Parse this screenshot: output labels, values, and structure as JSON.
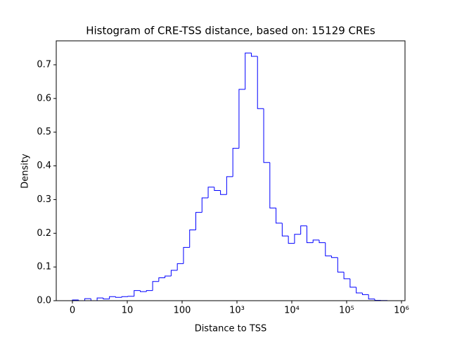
{
  "chart_data": {
    "type": "histogram",
    "title": "Histogram of CRE-TSS distance, based on: 15129 CREs",
    "x_label": "Distance to TSS",
    "y_label": "Density",
    "xscale": "symlog",
    "linthresh": 10,
    "color": "#0000ff",
    "bins": [
      0,
      1.125,
      2.25,
      3.375,
      4.5,
      5.625,
      6.75,
      7.875,
      9,
      10.29,
      13.34,
      17.28,
      22.39,
      29.01,
      37.58,
      48.7,
      63.1,
      81.75,
      105.9,
      137.2,
      177.8,
      230.4,
      298.5,
      386.7,
      501.2,
      649.3,
      841.4,
      1090,
      1413,
      1830,
      2371,
      3073,
      3981,
      5158,
      6683,
      8660,
      11220,
      14540,
      18840,
      24400,
      31620,
      40970,
      53090,
      68770,
      89130,
      115500,
      149600,
      193800,
      251200,
      325500,
      421700,
      546400
    ],
    "values": [
      0.002,
      0,
      0.006,
      0,
      0.008,
      0.005,
      0.012,
      0.01,
      0.012,
      0.013,
      0.03,
      0.027,
      0.03,
      0.057,
      0.068,
      0.073,
      0.09,
      0.11,
      0.158,
      0.21,
      0.262,
      0.305,
      0.337,
      0.327,
      0.315,
      0.368,
      0.452,
      0.627,
      0.735,
      0.725,
      0.57,
      0.41,
      0.275,
      0.23,
      0.192,
      0.17,
      0.197,
      0.222,
      0.172,
      0.18,
      0.172,
      0.133,
      0.128,
      0.085,
      0.065,
      0.04,
      0.023,
      0.018,
      0.005,
      0.001,
      0.0005
    ],
    "xlim": [
      -2.95,
      1159000
    ],
    "xticks": [
      0,
      10,
      100,
      {
        "value": 1000,
        "label": "10³"
      },
      {
        "value": 10000,
        "label": "10⁴"
      },
      {
        "value": 100000,
        "label": "10⁵"
      },
      {
        "value": 1000000,
        "label": "10⁶"
      }
    ],
    "ylim": [
      0,
      0.771
    ],
    "yticks": [
      {
        "value": 0,
        "label": "0.0"
      },
      0.1,
      0.2,
      0.3,
      0.4,
      0.5,
      0.6,
      0.7
    ]
  }
}
